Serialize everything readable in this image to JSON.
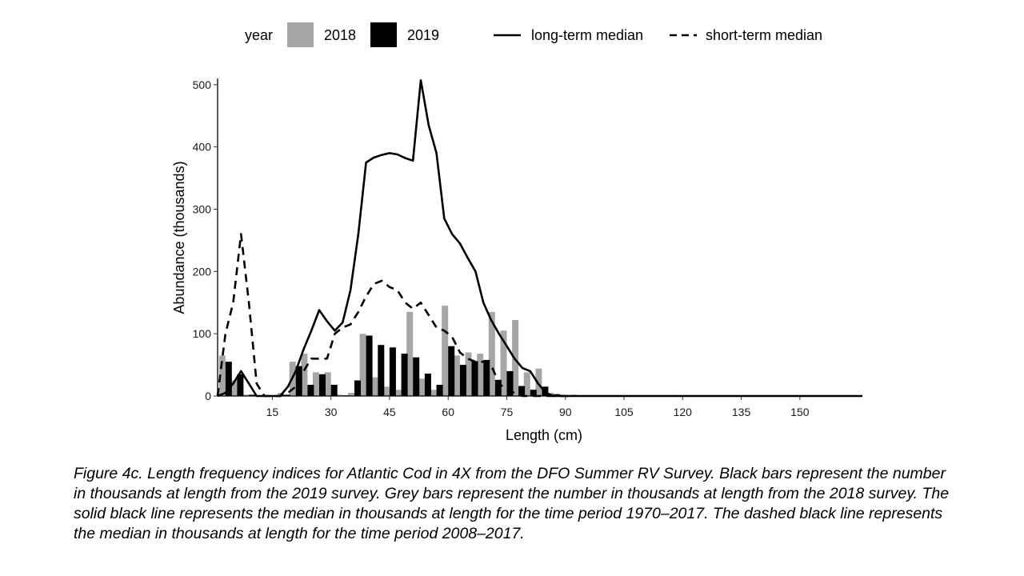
{
  "chart_data": {
    "type": "bar",
    "xlabel": "Length (cm)",
    "ylabel": "Abundance (thousands)",
    "xlim": [
      1,
      166
    ],
    "ylim": [
      0,
      510
    ],
    "xticks": [
      15,
      30,
      45,
      60,
      75,
      90,
      105,
      120,
      135,
      150
    ],
    "yticks": [
      0,
      100,
      200,
      300,
      400,
      500
    ],
    "grid": false,
    "legend": {
      "position": "top",
      "fill_title": "year",
      "fill_entries": [
        "2018",
        "2019"
      ],
      "line_entries": [
        "long-term median",
        "short-term median"
      ]
    },
    "colors": {
      "2018": "#a6a6a6",
      "2019": "#000000",
      "long-term median": "#000000",
      "short-term median": "#000000"
    },
    "bars": {
      "x": [
        3,
        6,
        9,
        12,
        15,
        18,
        21,
        24,
        27,
        30,
        33,
        36,
        39,
        42,
        45,
        48,
        51,
        54,
        57,
        60,
        63,
        66,
        69,
        72,
        75,
        78,
        81,
        84,
        87,
        90,
        93,
        96
      ],
      "series": [
        {
          "name": "2018",
          "values": [
            65,
            25,
            2,
            0,
            0,
            5,
            55,
            68,
            38,
            38,
            2,
            5,
            100,
            30,
            15,
            10,
            135,
            28,
            10,
            145,
            65,
            70,
            68,
            135,
            105,
            122,
            38,
            44,
            5,
            2,
            2,
            0
          ]
        },
        {
          "name": "2019",
          "values": [
            55,
            35,
            2,
            0,
            0,
            2,
            48,
            18,
            35,
            18,
            1,
            25,
            97,
            82,
            78,
            68,
            62,
            36,
            18,
            80,
            50,
            56,
            58,
            26,
            40,
            16,
            10,
            15,
            3,
            1,
            0,
            0
          ]
        }
      ]
    },
    "lines": [
      {
        "name": "long-term median",
        "style": "solid",
        "x": [
          1,
          3,
          5,
          7,
          9,
          11,
          13,
          15,
          17,
          19,
          21,
          23,
          25,
          27,
          29,
          31,
          33,
          35,
          37,
          39,
          41,
          43,
          45,
          47,
          49,
          51,
          53,
          55,
          57,
          59,
          61,
          63,
          65,
          67,
          69,
          71,
          73,
          75,
          77,
          79,
          81,
          83,
          85,
          87,
          89,
          91,
          93,
          95,
          97,
          99,
          101,
          103,
          105,
          110,
          120,
          130,
          140,
          150,
          160,
          166
        ],
        "y": [
          0,
          5,
          20,
          40,
          20,
          0,
          0,
          0,
          0,
          15,
          40,
          75,
          105,
          138,
          120,
          105,
          118,
          170,
          260,
          375,
          383,
          387,
          390,
          388,
          382,
          378,
          507,
          435,
          390,
          285,
          260,
          245,
          222,
          200,
          150,
          122,
          100,
          80,
          60,
          45,
          40,
          20,
          5,
          0,
          0,
          0,
          0,
          0,
          0,
          0,
          0,
          0,
          0,
          0,
          0,
          0,
          0,
          0,
          0,
          0
        ]
      },
      {
        "name": "short-term median",
        "style": "dashed",
        "x": [
          1,
          3,
          5,
          7,
          9,
          11,
          13,
          15,
          17,
          19,
          21,
          23,
          25,
          27,
          29,
          31,
          33,
          35,
          37,
          39,
          41,
          43,
          45,
          47,
          49,
          51,
          53,
          55,
          57,
          59,
          61,
          63,
          65,
          67,
          69,
          71,
          73,
          75,
          77,
          79,
          81,
          83,
          85,
          87,
          89,
          91
        ],
        "y": [
          0,
          100,
          150,
          260,
          150,
          20,
          0,
          0,
          0,
          5,
          15,
          40,
          60,
          60,
          60,
          100,
          110,
          115,
          135,
          160,
          180,
          185,
          175,
          170,
          150,
          140,
          150,
          130,
          110,
          105,
          95,
          70,
          60,
          55,
          55,
          50,
          20,
          10,
          5,
          0,
          0,
          0,
          0,
          0,
          0,
          0
        ]
      }
    ]
  },
  "caption": "Figure 4c. Length frequency indices for Atlantic Cod in 4X from the DFO Summer RV Survey. Black bars represent the number in thousands at length from the 2019 survey. Grey bars represent the number in thousands at length from the 2018 survey. The solid black line represents the median in thousands at length for the time period 1970–2017. The dashed black line represents the median in thousands at length for the time period 2008–2017."
}
